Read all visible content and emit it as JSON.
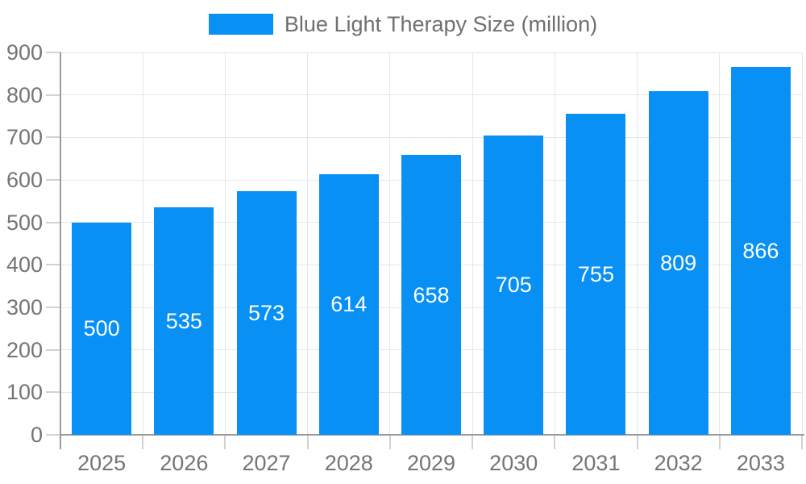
{
  "chart_data": {
    "type": "bar",
    "title": "",
    "legend": {
      "label": "Blue Light Therapy Size (million)",
      "position": "top-center"
    },
    "categories": [
      "2025",
      "2026",
      "2027",
      "2028",
      "2029",
      "2030",
      "2031",
      "2032",
      "2033"
    ],
    "series": [
      {
        "name": "Blue Light Therapy Size (million)",
        "values": [
          500,
          535,
          573,
          614,
          658,
          705,
          755,
          809,
          866
        ]
      }
    ],
    "value_labels": {
      "visible": true,
      "position": "inside-center",
      "color": "#ffffff"
    },
    "y_axis": {
      "min": 0,
      "max": 900,
      "tick_interval": 100,
      "tick_labels": [
        "0",
        "100",
        "200",
        "300",
        "400",
        "500",
        "600",
        "700",
        "800",
        "900"
      ]
    },
    "x_axis": {
      "tick_labels": [
        "2025",
        "2026",
        "2027",
        "2028",
        "2029",
        "2030",
        "2031",
        "2032",
        "2033"
      ]
    },
    "grid": {
      "horizontal": true,
      "vertical": true
    },
    "colors": {
      "bar": "#0890f5",
      "axis_label": "#757575",
      "legend_label": "#6f6f6f",
      "gridline": "#e6e6e6",
      "axis_line": "#9b9b9b",
      "tick": "#d2d2d2",
      "value_label": "#ffffff",
      "background": "#ffffff"
    }
  }
}
